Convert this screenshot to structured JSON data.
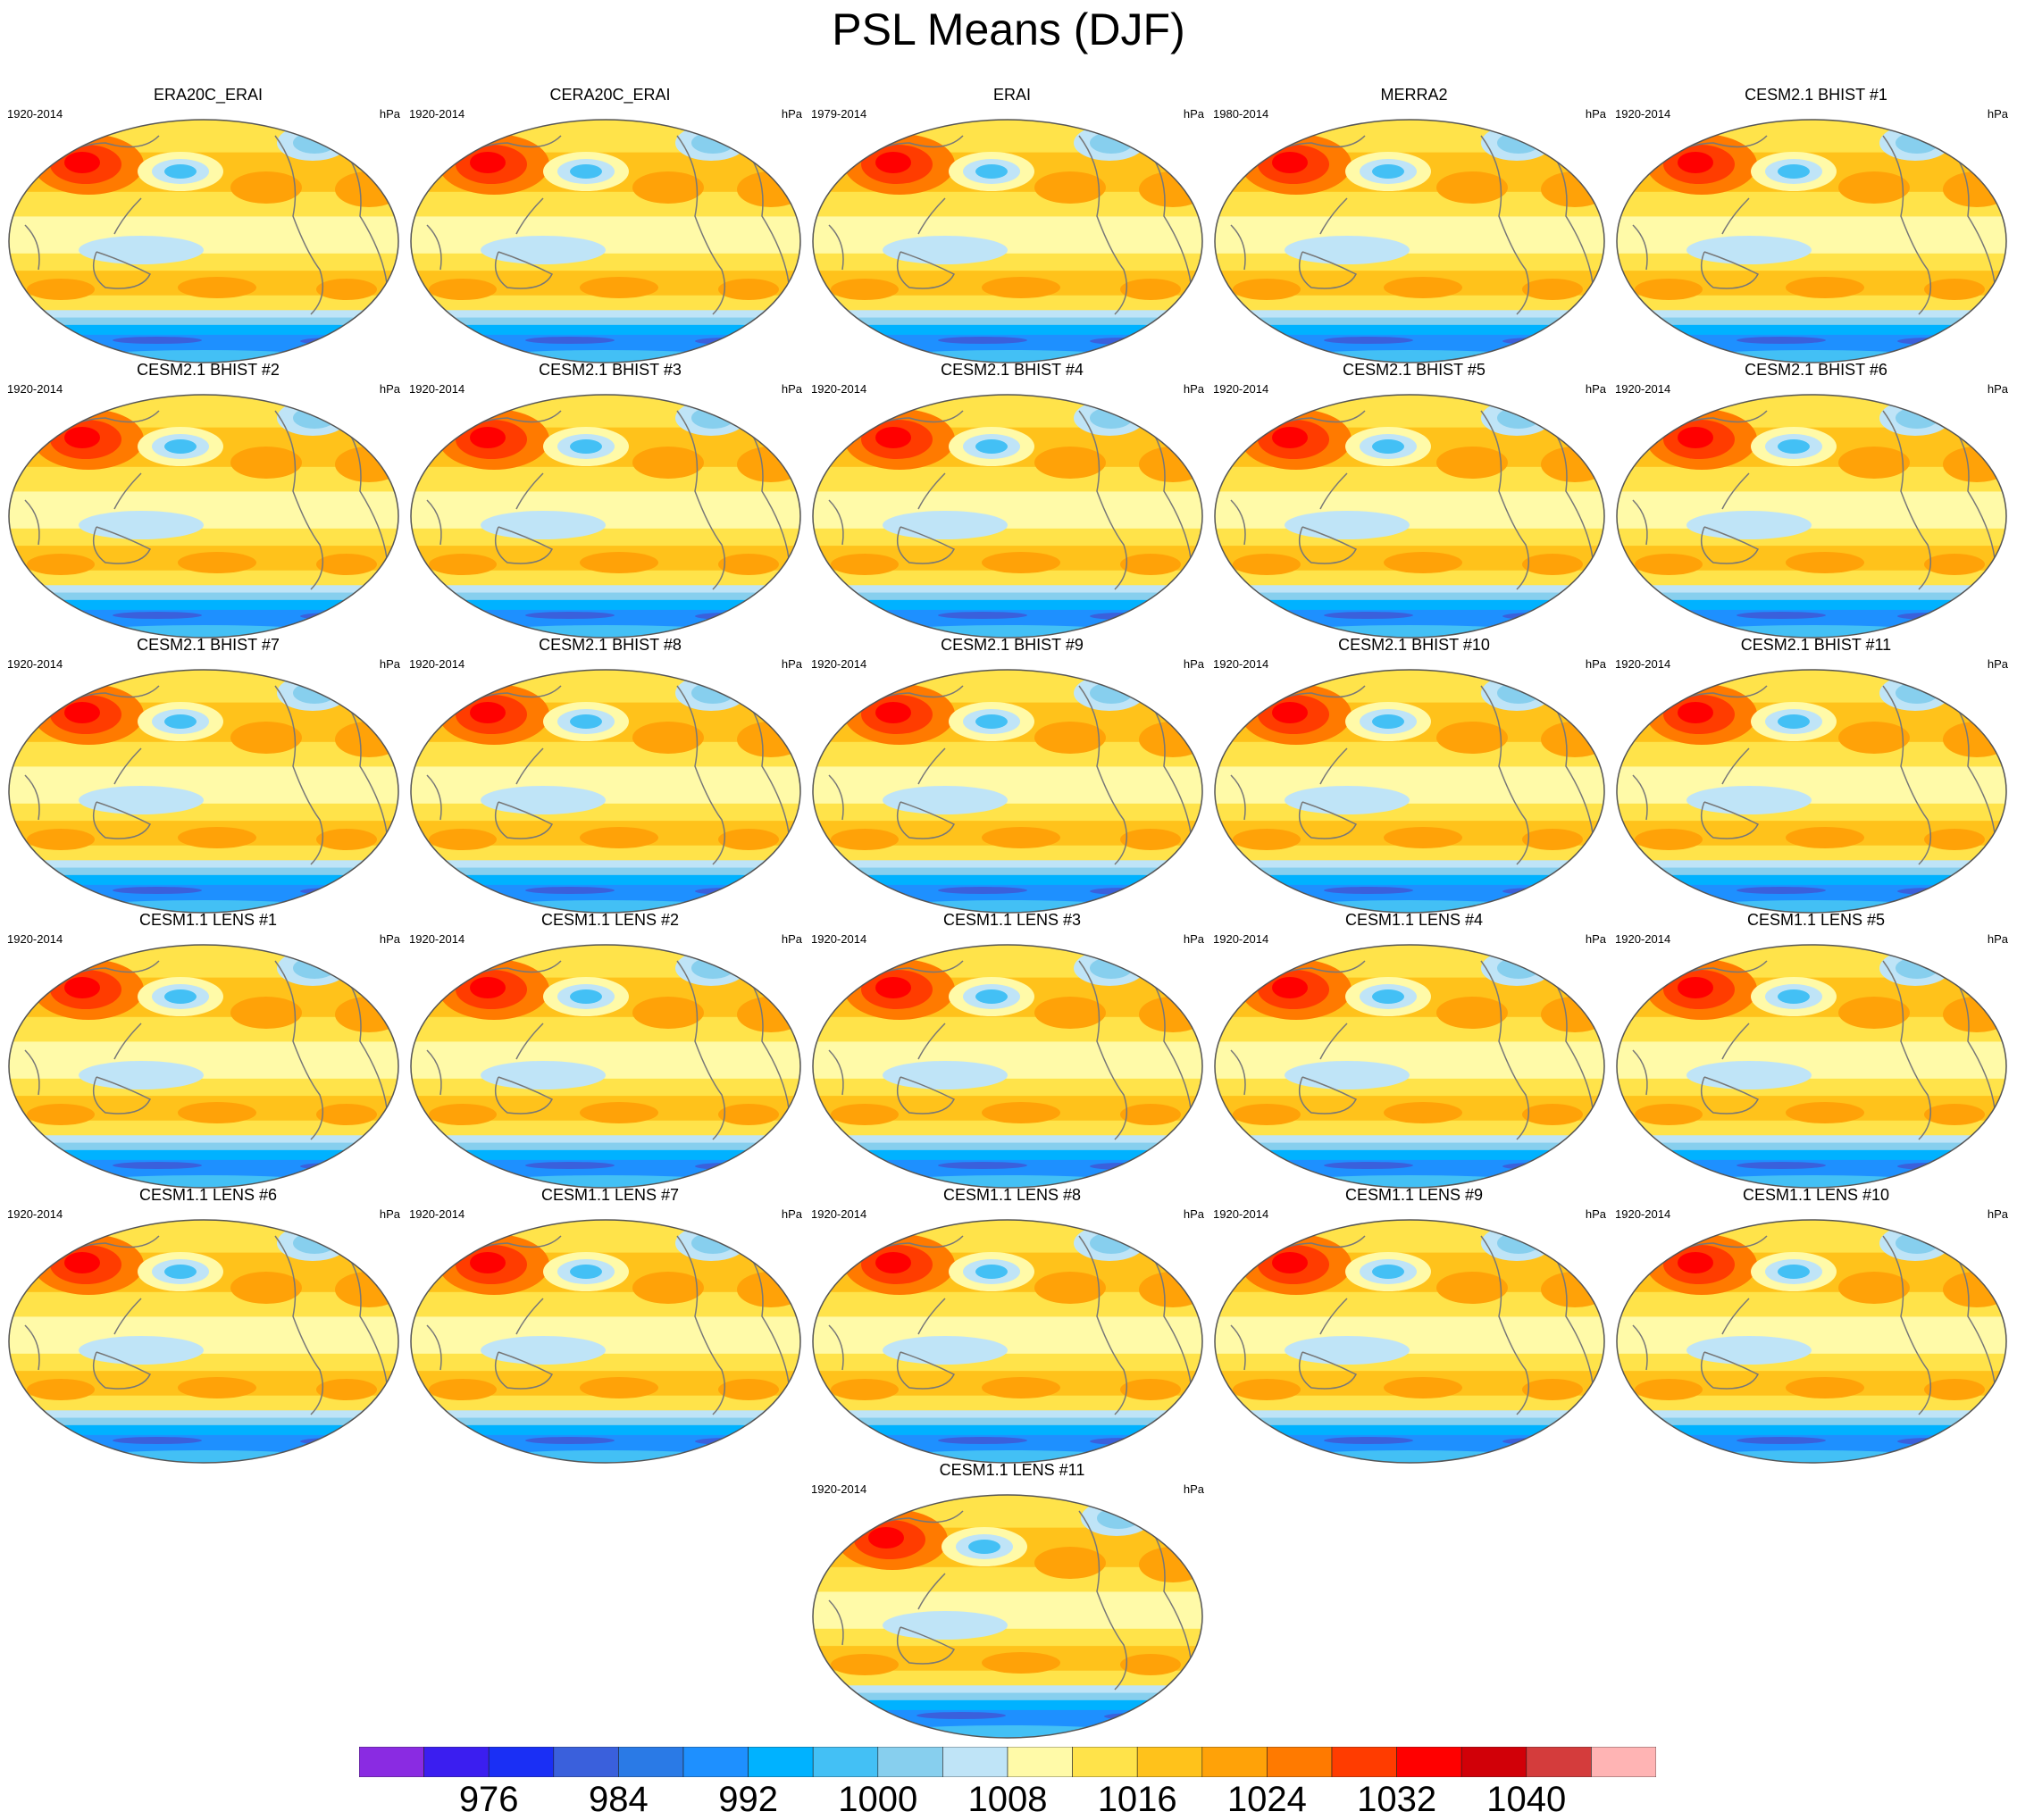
{
  "title": "PSL Means (DJF)",
  "units": "hPa",
  "panels": [
    {
      "title": "ERA20C_ERAI",
      "period": "1920-2014"
    },
    {
      "title": "CERA20C_ERAI",
      "period": "1920-2014"
    },
    {
      "title": "ERAI",
      "period": "1979-2014"
    },
    {
      "title": "MERRA2",
      "period": "1980-2014"
    },
    {
      "title": "CESM2.1 BHIST #1",
      "period": "1920-2014"
    },
    {
      "title": "CESM2.1 BHIST #2",
      "period": "1920-2014"
    },
    {
      "title": "CESM2.1 BHIST #3",
      "period": "1920-2014"
    },
    {
      "title": "CESM2.1 BHIST #4",
      "period": "1920-2014"
    },
    {
      "title": "CESM2.1 BHIST #5",
      "period": "1920-2014"
    },
    {
      "title": "CESM2.1 BHIST #6",
      "period": "1920-2014"
    },
    {
      "title": "CESM2.1 BHIST #7",
      "period": "1920-2014"
    },
    {
      "title": "CESM2.1 BHIST #8",
      "period": "1920-2014"
    },
    {
      "title": "CESM2.1 BHIST #9",
      "period": "1920-2014"
    },
    {
      "title": "CESM2.1 BHIST #10",
      "period": "1920-2014"
    },
    {
      "title": "CESM2.1 BHIST #11",
      "period": "1920-2014"
    },
    {
      "title": "CESM1.1 LENS #1",
      "period": "1920-2014"
    },
    {
      "title": "CESM1.1 LENS #2",
      "period": "1920-2014"
    },
    {
      "title": "CESM1.1 LENS #3",
      "period": "1920-2014"
    },
    {
      "title": "CESM1.1 LENS #4",
      "period": "1920-2014"
    },
    {
      "title": "CESM1.1 LENS #5",
      "period": "1920-2014"
    },
    {
      "title": "CESM1.1 LENS #6",
      "period": "1920-2014"
    },
    {
      "title": "CESM1.1 LENS #7",
      "period": "1920-2014"
    },
    {
      "title": "CESM1.1 LENS #8",
      "period": "1920-2014"
    },
    {
      "title": "CESM1.1 LENS #9",
      "period": "1920-2014"
    },
    {
      "title": "CESM1.1 LENS #10",
      "period": "1920-2014"
    },
    {
      "title": "CESM1.1 LENS #11",
      "period": "1920-2014"
    }
  ],
  "colorbar": {
    "colors": [
      "#8a2be2",
      "#3b1ef0",
      "#1a2ff5",
      "#3a60dc",
      "#2a7ae6",
      "#1e90ff",
      "#00b2ff",
      "#43c0f5",
      "#87cfee",
      "#bfe4f7",
      "#fffaa8",
      "#ffe34a",
      "#ffc21b",
      "#ffa208",
      "#ff7a00",
      "#ff3c00",
      "#ff0000",
      "#d10008",
      "#d43c3c",
      "#ffb4b4"
    ],
    "labels": [
      "976",
      "984",
      "992",
      "1000",
      "1008",
      "1016",
      "1024",
      "1032",
      "1040"
    ]
  },
  "map_palette": {
    "outside": "#ffffff",
    "border": "#555555",
    "coast": "#777777"
  }
}
